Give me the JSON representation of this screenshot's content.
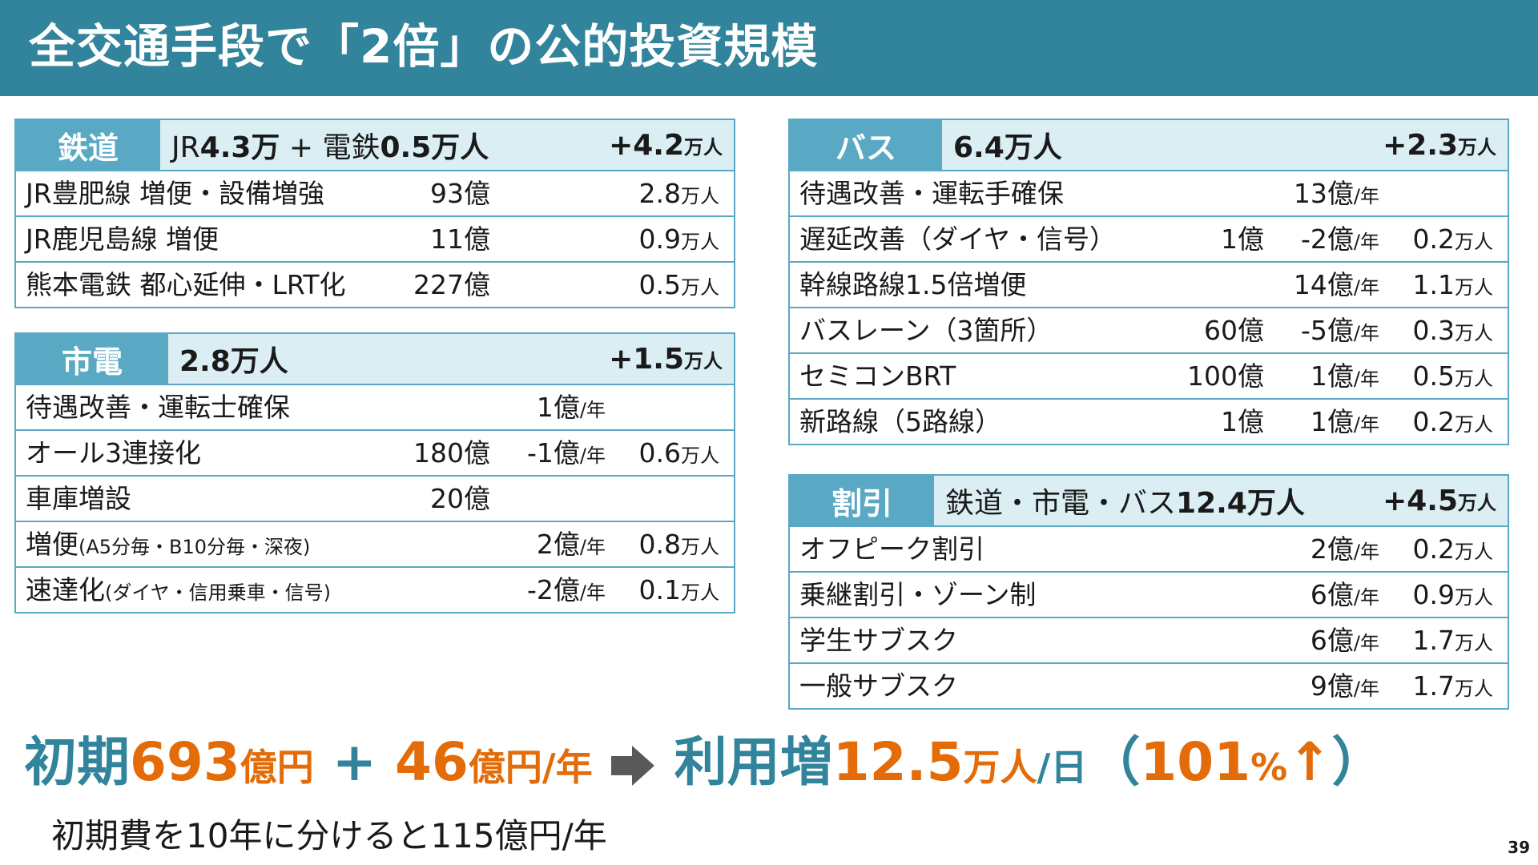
{
  "title": "全交通手段で「2倍」の公的投資規模",
  "page_number": "39",
  "rail": {
    "badge": "鉄道",
    "head_a": "JR",
    "head_b": "4.3万",
    "head_c": " + 電鉄",
    "head_d": "0.5万人",
    "total_num": "+4.2",
    "total_unit": "万人",
    "rows": [
      {
        "label": "JR豊肥線 増便・設備増強",
        "initial": "93億",
        "users": "2.8",
        "users_unit": "万人"
      },
      {
        "label": "JR鹿児島線 増便",
        "initial": "11億",
        "users": "0.9",
        "users_unit": "万人"
      },
      {
        "label": "熊本電鉄 都心延伸・LRT化",
        "initial": "227億",
        "users": "0.5",
        "users_unit": "万人"
      }
    ]
  },
  "tram": {
    "badge": "市電",
    "head": "2.8万人",
    "total_num": "+1.5",
    "total_unit": "万人",
    "rows": [
      {
        "label": "待遇改善・運転士確保",
        "sub": "",
        "initial": "",
        "annual": "1億",
        "annual_unit": "/年",
        "users": "",
        "users_unit": ""
      },
      {
        "label": "オール3連接化",
        "sub": "",
        "initial": "180億",
        "annual": "-1億",
        "annual_unit": "/年",
        "users": "0.6",
        "users_unit": "万人"
      },
      {
        "label": "車庫増設",
        "sub": "",
        "initial": "20億",
        "annual": "",
        "annual_unit": "",
        "users": "",
        "users_unit": ""
      },
      {
        "label": "増便",
        "sub": "(A5分毎・B10分毎・深夜)",
        "initial": "",
        "annual": "2億",
        "annual_unit": "/年",
        "users": "0.8",
        "users_unit": "万人"
      },
      {
        "label": "速達化",
        "sub": "(ダイヤ・信用乗車・信号)",
        "initial": "",
        "annual": "-2億",
        "annual_unit": "/年",
        "users": "0.1",
        "users_unit": "万人"
      }
    ]
  },
  "bus": {
    "badge": "バス",
    "head": "6.4万人",
    "total_num": "+2.3",
    "total_unit": "万人",
    "rows": [
      {
        "label": "待遇改善・運転手確保",
        "initial": "",
        "annual": "13億",
        "annual_unit": "/年",
        "users": "",
        "users_unit": ""
      },
      {
        "label": "遅延改善（ダイヤ・信号）",
        "initial": "1億",
        "annual": "-2億",
        "annual_unit": "/年",
        "users": "0.2",
        "users_unit": "万人"
      },
      {
        "label": "幹線路線1.5倍増便",
        "initial": "",
        "annual": "14億",
        "annual_unit": "/年",
        "users": "1.1",
        "users_unit": "万人"
      },
      {
        "label": "バスレーン（3箇所）",
        "initial": "60億",
        "annual": "-5億",
        "annual_unit": "/年",
        "users": "0.3",
        "users_unit": "万人"
      },
      {
        "label": "セミコンBRT",
        "initial": "100億",
        "annual": "1億",
        "annual_unit": "/年",
        "users": "0.5",
        "users_unit": "万人"
      },
      {
        "label": "新路線（5路線）",
        "initial": "1億",
        "annual": "1億",
        "annual_unit": "/年",
        "users": "0.2",
        "users_unit": "万人"
      }
    ]
  },
  "discount": {
    "badge": "割引",
    "head_a": "鉄道・市電・バス",
    "head_b": "12.4万人",
    "total_num": "+4.5",
    "total_unit": "万人",
    "rows": [
      {
        "label": "オフピーク割引",
        "annual": "2億",
        "annual_unit": "/年",
        "users": "0.2",
        "users_unit": "万人"
      },
      {
        "label": "乗継割引・ゾーン制",
        "annual": "6億",
        "annual_unit": "/年",
        "users": "0.9",
        "users_unit": "万人"
      },
      {
        "label": "学生サブスク",
        "annual": "6億",
        "annual_unit": "/年",
        "users": "1.7",
        "users_unit": "万人"
      },
      {
        "label": "一般サブスク",
        "annual": "9億",
        "annual_unit": "/年",
        "users": "1.7",
        "users_unit": "万人"
      }
    ]
  },
  "summary": {
    "p1": "初期",
    "p2": "693",
    "p3": "億円",
    "p4": " + ",
    "p5": "46",
    "p6": "億円/年",
    "p7": "利用増",
    "p8": "12.5",
    "p9": "万人",
    "p10": "/日",
    "p11": "（",
    "p12": "101",
    "p13": "%",
    "p14": "↑",
    "p15": "）"
  },
  "note": "初期費を10年に分けると115億円/年",
  "colors": {
    "header": "#31849b",
    "badge": "#5aa9c4",
    "light": "#daeef3",
    "accent": "#e36c09"
  }
}
